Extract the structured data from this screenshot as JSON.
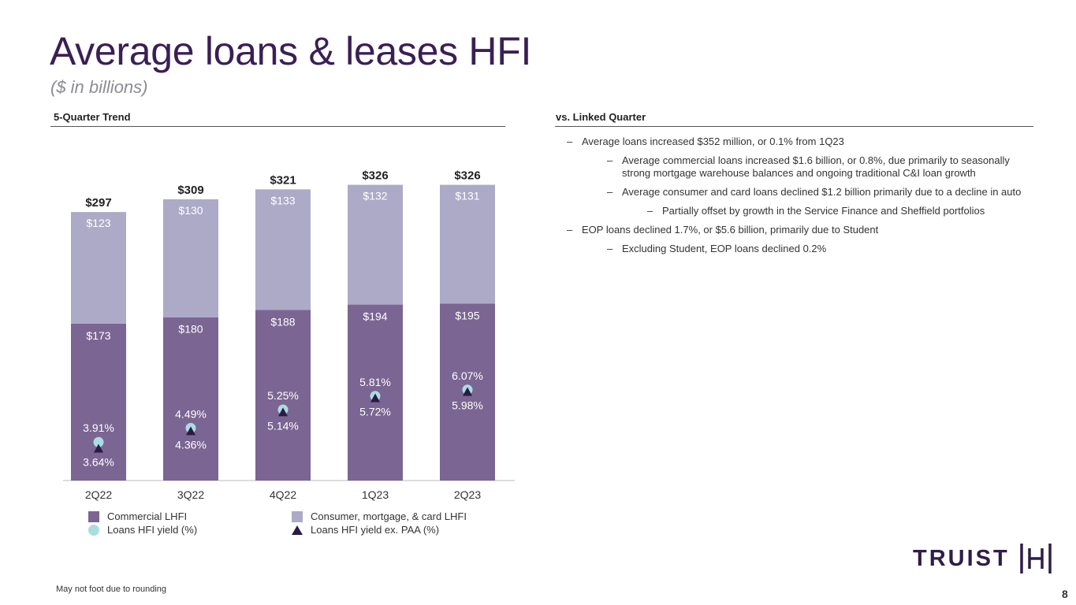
{
  "header": {
    "title": "Average loans & leases HFI",
    "subtitle": "($ in billions)"
  },
  "left_section": {
    "heading": "5-Quarter Trend"
  },
  "right_section": {
    "heading": "vs. Linked Quarter",
    "bullets": [
      {
        "level": 1,
        "text": "Average loans increased $352 million, or 0.1% from 1Q23"
      },
      {
        "level": 2,
        "text": "Average commercial loans increased $1.6 billion, or 0.8%, due primarily to seasonally strong mortgage warehouse balances and ongoing traditional C&I loan growth"
      },
      {
        "level": 2,
        "text": "Average consumer and card loans declined $1.2 billion primarily due to a decline in auto"
      },
      {
        "level": 3,
        "text": "Partially offset by growth in the Service Finance and Sheffield portfolios"
      },
      {
        "level": 1,
        "text": "EOP loans declined 1.7%, or $5.6 billion, primarily due to Student"
      },
      {
        "level": 2,
        "text": "Excluding Student, EOP loans declined 0.2%"
      }
    ],
    "dash": "–"
  },
  "chart_data": {
    "type": "bar",
    "stacked": true,
    "categories": [
      "2Q22",
      "3Q22",
      "4Q22",
      "1Q23",
      "2Q23"
    ],
    "series": [
      {
        "name": "Commercial LHFI",
        "values": [
          173,
          180,
          188,
          194,
          195
        ],
        "labels": [
          "$173",
          "$180",
          "$188",
          "$194",
          "$195"
        ],
        "color": "#7b6592"
      },
      {
        "name": "Consumer, mortgage, & card LHFI",
        "values": [
          123,
          130,
          133,
          132,
          131
        ],
        "labels": [
          "$123",
          "$130",
          "$133",
          "$132",
          "$131"
        ],
        "color": "#adaac8"
      }
    ],
    "totals": [
      297,
      309,
      321,
      326,
      326
    ],
    "total_labels": [
      "$297",
      "$309",
      "$321",
      "$326",
      "$326"
    ],
    "yield_series": [
      {
        "name": "Loans HFI yield (%)",
        "marker": "circle",
        "color": "#a9dde2",
        "values": [
          3.91,
          4.49,
          5.25,
          5.81,
          6.07
        ],
        "labels": [
          "3.91%",
          "4.49%",
          "5.25%",
          "5.81%",
          "6.07%"
        ]
      },
      {
        "name": "Loans HFI yield ex. PAA (%)",
        "marker": "triangle",
        "color": "#2b1a45",
        "values": [
          3.64,
          4.36,
          5.14,
          5.72,
          5.98
        ],
        "labels": [
          "3.64%",
          "4.36%",
          "5.14%",
          "5.72%",
          "5.98%"
        ]
      }
    ],
    "ylim": [
      0,
      330
    ],
    "yield_axis_range": [
      2.0,
      8.5
    ],
    "grid": false,
    "legend_position": "bottom"
  },
  "footer": {
    "note": "May not foot due to rounding",
    "page_number": "8",
    "brand": "TRUIST"
  }
}
